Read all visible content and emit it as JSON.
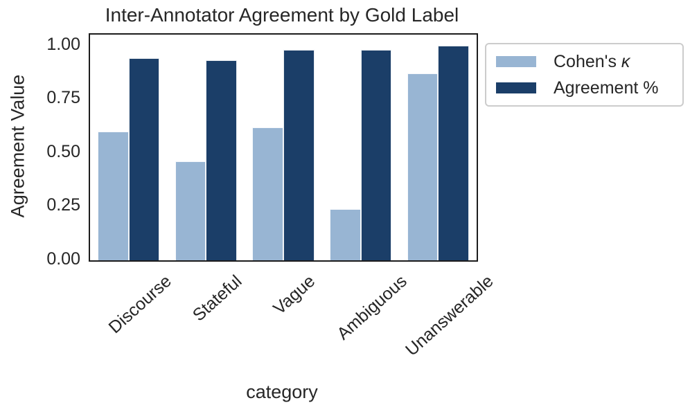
{
  "title": "Inter-Annotator Agreement by Gold Label",
  "axes": {
    "ylabel": "Agreement Value",
    "xlabel": "category"
  },
  "legend": {
    "items": [
      {
        "label": "Cohen's κ",
        "color": "#98b5d3"
      },
      {
        "label": "Agreement %",
        "color": "#1b3e68"
      }
    ]
  },
  "chart_data": {
    "type": "bar",
    "title": "Inter-Annotator Agreement by Gold Label",
    "xlabel": "category",
    "ylabel": "Agreement Value",
    "categories": [
      "Discourse",
      "Stateful",
      "Vague",
      "Ambiguous",
      "Unanswerable"
    ],
    "series": [
      {
        "name": "Cohen's κ",
        "color": "#98b5d3",
        "values": [
          0.6,
          0.46,
          0.62,
          0.24,
          0.87
        ]
      },
      {
        "name": "Agreement %",
        "color": "#1b3e68",
        "values": [
          0.94,
          0.93,
          0.98,
          0.98,
          1.0
        ]
      }
    ],
    "ylim": [
      0,
      1.05
    ],
    "yticks": [
      0.0,
      0.25,
      0.5,
      0.75,
      1.0
    ],
    "ytick_labels": [
      "0.00",
      "0.25",
      "0.50",
      "0.75",
      "1.00"
    ],
    "xtick_rotation_deg": 42,
    "grid": false,
    "legend_position": "outside-upper-right",
    "bar_edge_color": "#ffffff",
    "spine_color": "#1c1c1c"
  },
  "colors": {
    "text": "#262626",
    "background": "#ffffff",
    "legend_border": "#cccccc"
  }
}
